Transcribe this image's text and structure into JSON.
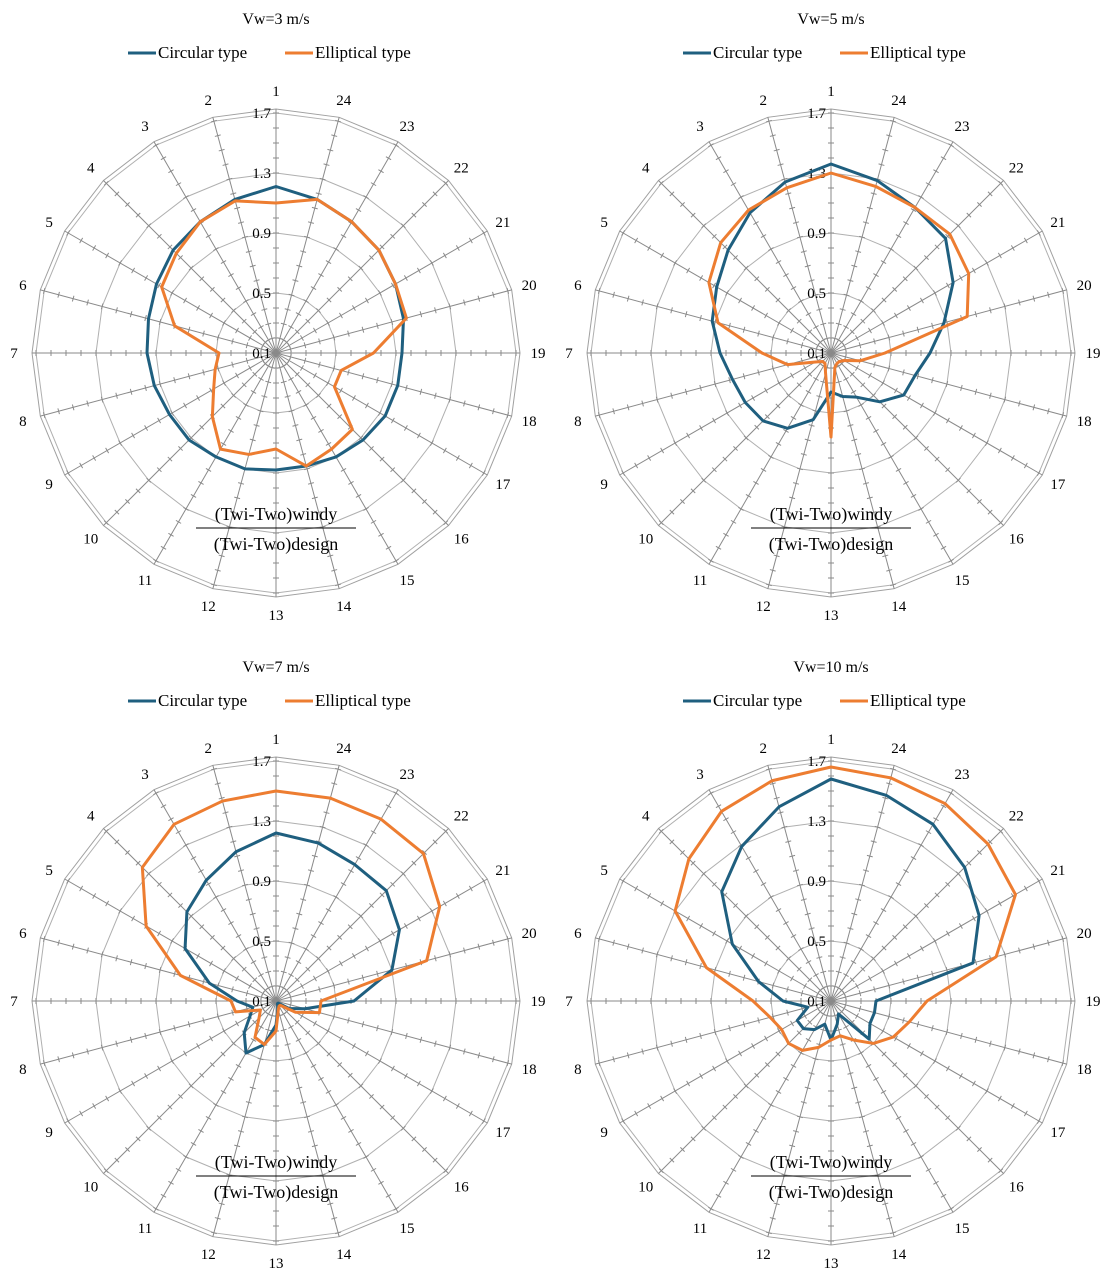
{
  "chart_data": [
    {
      "type": "radar",
      "title": "Vw=3 m/s",
      "categories": [
        "1",
        "24",
        "23",
        "22",
        "21",
        "20",
        "19",
        "18",
        "17",
        "16",
        "15",
        "14",
        "13",
        "12",
        "11",
        "10",
        "9",
        "8",
        "7",
        "6",
        "5",
        "4",
        "3",
        "2"
      ],
      "tick_labels": [
        "0.1",
        "0.5",
        "0.9",
        "1.3",
        "1.7"
      ],
      "rlim": [
        0.1,
        1.7
      ],
      "axis_annotation": {
        "numerator": "(Twi-Two)windy",
        "denominator": "(Twi-Two)design"
      },
      "series": [
        {
          "name": "Circular type",
          "color": "#1f5f7f",
          "values": [
            1.21,
            1.16,
            1.11,
            1.07,
            1.02,
            0.98,
            0.94,
            0.94,
            0.94,
            0.92,
            0.9,
            0.88,
            0.88,
            0.9,
            0.9,
            0.92,
            0.92,
            0.94,
            0.96,
            0.98,
            1.02,
            1.07,
            1.11,
            1.16
          ]
        },
        {
          "name": "Elliptical type",
          "color": "#ed7d31",
          "values": [
            1.1,
            1.16,
            1.11,
            1.07,
            1.02,
            1.0,
            0.75,
            0.55,
            0.55,
            0.82,
            0.84,
            0.88,
            0.74,
            0.8,
            0.84,
            0.7,
            0.58,
            0.52,
            0.48,
            0.8,
            0.98,
            1.04,
            1.11,
            1.15
          ]
        }
      ]
    },
    {
      "type": "radar",
      "title": "Vw=5 m/s",
      "categories": [
        "1",
        "24",
        "23",
        "22",
        "21",
        "20",
        "19",
        "18",
        "17",
        "16",
        "15",
        "14",
        "13",
        "12",
        "11",
        "10",
        "9",
        "8",
        "7",
        "6",
        "5",
        "4",
        "3",
        "2"
      ],
      "tick_labels": [
        "0.1",
        "0.5",
        "0.9",
        "1.3",
        "1.7"
      ],
      "rlim": [
        0.1,
        1.7
      ],
      "axis_annotation": {
        "numerator": "(Twi-Two)windy",
        "denominator": "(Twi-Two)design"
      },
      "series": [
        {
          "name": "Circular type",
          "color": "#1f5f7f",
          "values": [
            1.36,
            1.29,
            1.22,
            1.18,
            1.04,
            0.88,
            0.76,
            0.68,
            0.66,
            0.56,
            0.44,
            0.4,
            0.36,
            0.56,
            0.68,
            0.74,
            0.76,
            0.78,
            0.84,
            0.92,
            0.98,
            1.07,
            1.18,
            1.28
          ]
        },
        {
          "name": "Elliptical type",
          "color": "#ed7d31",
          "values": [
            1.3,
            1.25,
            1.22,
            1.22,
            1.16,
            1.04,
            0.46,
            0.3,
            0.2,
            0.18,
            0.18,
            0.2,
            0.66,
            0.24,
            0.18,
            0.18,
            0.22,
            0.4,
            0.56,
            0.88,
            1.04,
            1.14,
            1.2,
            1.24
          ]
        }
      ]
    },
    {
      "type": "radar",
      "title": "Vw=7 m/s",
      "categories": [
        "1",
        "24",
        "23",
        "22",
        "21",
        "20",
        "19",
        "18",
        "17",
        "16",
        "15",
        "14",
        "13",
        "12",
        "11",
        "10",
        "9",
        "8",
        "7",
        "6",
        "5",
        "4",
        "3",
        "2"
      ],
      "tick_labels": [
        "0.1",
        "0.5",
        "0.9",
        "1.3",
        "1.7"
      ],
      "rlim": [
        0.1,
        1.7
      ],
      "axis_annotation": {
        "numerator": "(Twi-Two)windy",
        "denominator": "(Twi-Two)design"
      },
      "series": [
        {
          "name": "Circular type",
          "color": "#1f5f7f",
          "values": [
            1.22,
            1.19,
            1.15,
            1.14,
            1.05,
            0.9,
            0.62,
            0.3,
            0.2,
            0.12,
            0.12,
            0.15,
            0.26,
            0.4,
            0.5,
            0.4,
            0.3,
            0.26,
            0.36,
            0.56,
            0.8,
            0.94,
            1.03,
            1.13
          ]
        },
        {
          "name": "Elliptical type",
          "color": "#ed7d31",
          "values": [
            1.5,
            1.5,
            1.5,
            1.49,
            1.36,
            1.14,
            0.4,
            0.4,
            0.25,
            0.14,
            0.14,
            0.16,
            0.3,
            0.4,
            0.38,
            0.26,
            0.22,
            0.38,
            0.4,
            0.76,
            1.1,
            1.36,
            1.46,
            1.48
          ]
        }
      ]
    },
    {
      "type": "radar",
      "title": "Vw=10 m/s",
      "categories": [
        "1",
        "24",
        "23",
        "22",
        "21",
        "20",
        "19",
        "18",
        "17",
        "16",
        "15",
        "14",
        "13",
        "12",
        "11",
        "10",
        "9",
        "8",
        "7",
        "6",
        "5",
        "4",
        "3",
        "2"
      ],
      "tick_labels": [
        "0.1",
        "0.5",
        "0.9",
        "1.3",
        "1.7"
      ],
      "rlim": [
        0.1,
        1.7
      ],
      "axis_annotation": {
        "numerator": "(Twi-Two)windy",
        "denominator": "(Twi-Two)design"
      },
      "series": [
        {
          "name": "Circular type",
          "color": "#1f5f7f",
          "values": [
            1.58,
            1.52,
            1.46,
            1.36,
            1.24,
            1.08,
            0.4,
            0.4,
            0.4,
            0.46,
            0.2,
            0.26,
            0.36,
            0.26,
            0.32,
            0.36,
            0.36,
            0.26,
            0.42,
            0.6,
            0.86,
            1.13,
            1.29,
            1.44
          ]
        },
        {
          "name": "Elliptical type",
          "color": "#ed7d31",
          "values": [
            1.66,
            1.64,
            1.62,
            1.58,
            1.52,
            1.24,
            0.74,
            0.64,
            0.58,
            0.5,
            0.4,
            0.34,
            0.36,
            0.42,
            0.48,
            0.5,
            0.48,
            0.52,
            0.62,
            0.96,
            1.3,
            1.44,
            1.56,
            1.62
          ]
        }
      ]
    }
  ]
}
